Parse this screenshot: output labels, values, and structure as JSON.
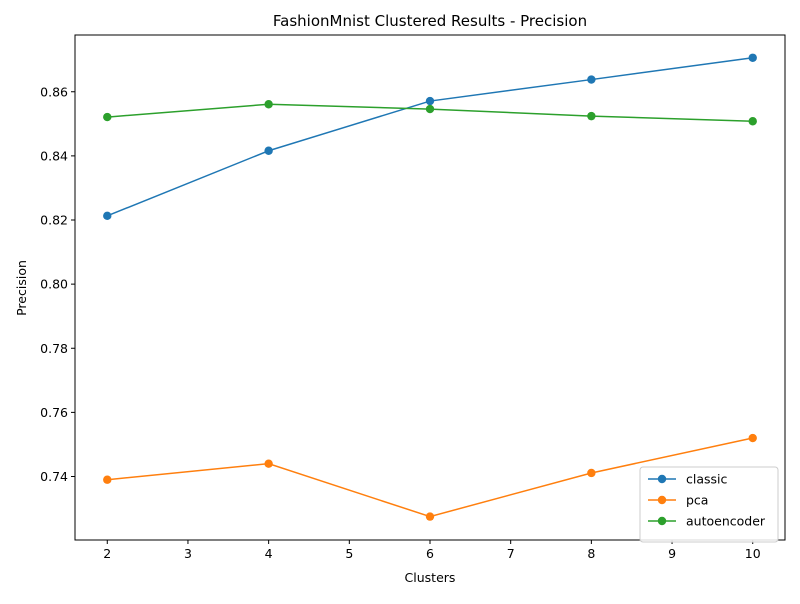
{
  "chart_data": {
    "type": "line",
    "title": "FashionMnist Clustered Results - Precision",
    "xlabel": "Clusters",
    "ylabel": "Precision",
    "x": [
      2,
      4,
      6,
      8,
      10
    ],
    "xlim": [
      1.6,
      10.4
    ],
    "ylim": [
      0.7202,
      0.8777
    ],
    "xticks": [
      "2",
      "3",
      "4",
      "5",
      "6",
      "7",
      "8",
      "9",
      "10"
    ],
    "yticks": [
      "0.74",
      "0.76",
      "0.78",
      "0.80",
      "0.82",
      "0.84",
      "0.86"
    ],
    "grid": false,
    "legend_position": "lower-right",
    "series": [
      {
        "name": "classic",
        "color": "#1f77b4",
        "values": [
          0.8213,
          0.8416,
          0.8571,
          0.8638,
          0.8706
        ]
      },
      {
        "name": "pca",
        "color": "#ff7f0e",
        "values": [
          0.739,
          0.744,
          0.7275,
          0.7411,
          0.752
        ]
      },
      {
        "name": "autoencoder",
        "color": "#2ca02c",
        "values": [
          0.8521,
          0.8561,
          0.8546,
          0.8524,
          0.8508
        ]
      }
    ]
  }
}
